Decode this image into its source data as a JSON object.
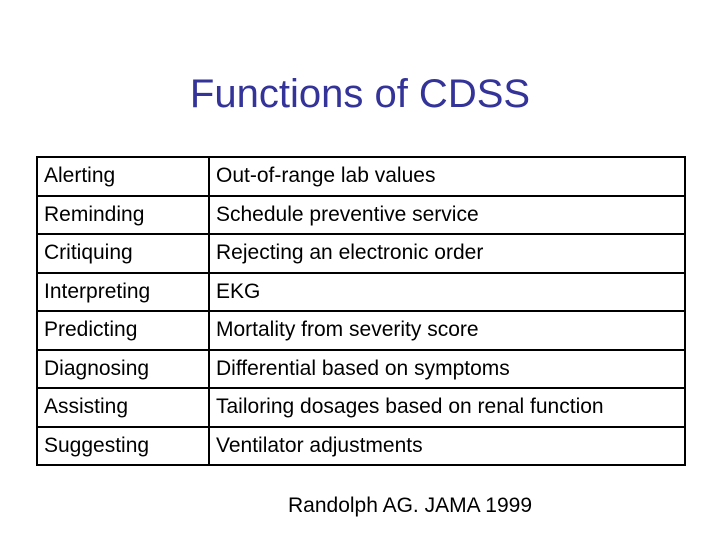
{
  "slide": {
    "title": "Functions of CDSS",
    "title_color": "#333399",
    "rows": [
      {
        "function": "Alerting",
        "example": "Out-of-range lab values"
      },
      {
        "function": "Reminding",
        "example": "Schedule preventive service"
      },
      {
        "function": "Critiquing",
        "example": "Rejecting an electronic order"
      },
      {
        "function": "Interpreting",
        "example": "EKG"
      },
      {
        "function": "Predicting",
        "example": "Mortality from severity score"
      },
      {
        "function": "Diagnosing",
        "example": "Differential based on symptoms"
      },
      {
        "function": "Assisting",
        "example": "Tailoring dosages based on renal function"
      },
      {
        "function": "Suggesting",
        "example": "Ventilator adjustments"
      }
    ],
    "citation": "Randolph AG. JAMA 1999"
  }
}
